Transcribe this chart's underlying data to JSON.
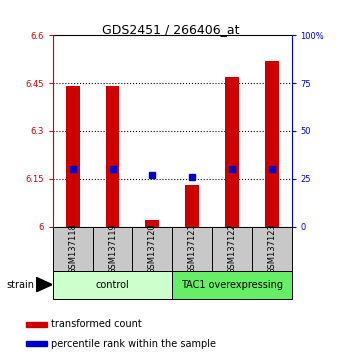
{
  "title": "GDS2451 / 266406_at",
  "samples": [
    "GSM137118",
    "GSM137119",
    "GSM137120",
    "GSM137121",
    "GSM137122",
    "GSM137123"
  ],
  "red_values": [
    6.44,
    6.44,
    6.02,
    6.13,
    6.47,
    6.52
  ],
  "blue_percentiles": [
    30,
    30,
    27,
    26,
    30,
    30
  ],
  "ymin": 6.0,
  "ymax": 6.6,
  "yticks_left": [
    6.0,
    6.15,
    6.3,
    6.45,
    6.6
  ],
  "yticks_left_labels": [
    "6",
    "6.15",
    "6.3",
    "6.45",
    "6.6"
  ],
  "yticks_right": [
    0,
    25,
    50,
    75,
    100
  ],
  "yticks_right_labels": [
    "0",
    "25",
    "50",
    "75",
    "100%"
  ],
  "groups": [
    {
      "label": "control",
      "indices": [
        0,
        1,
        2
      ],
      "color": "#ccffcc"
    },
    {
      "label": "TAC1 overexpressing",
      "indices": [
        3,
        4,
        5
      ],
      "color": "#66ee66"
    }
  ],
  "bar_color": "#cc0000",
  "dot_color": "#0000cc",
  "bar_width": 0.35,
  "background_color": "#ffffff",
  "plot_bg_color": "#ffffff",
  "strain_label": "strain",
  "legend_items": [
    {
      "color": "#cc0000",
      "label": "transformed count"
    },
    {
      "color": "#0000cc",
      "label": "percentile rank within the sample"
    }
  ],
  "title_fontsize": 9,
  "label_fontsize": 6,
  "group_fontsize": 7,
  "legend_fontsize": 7
}
